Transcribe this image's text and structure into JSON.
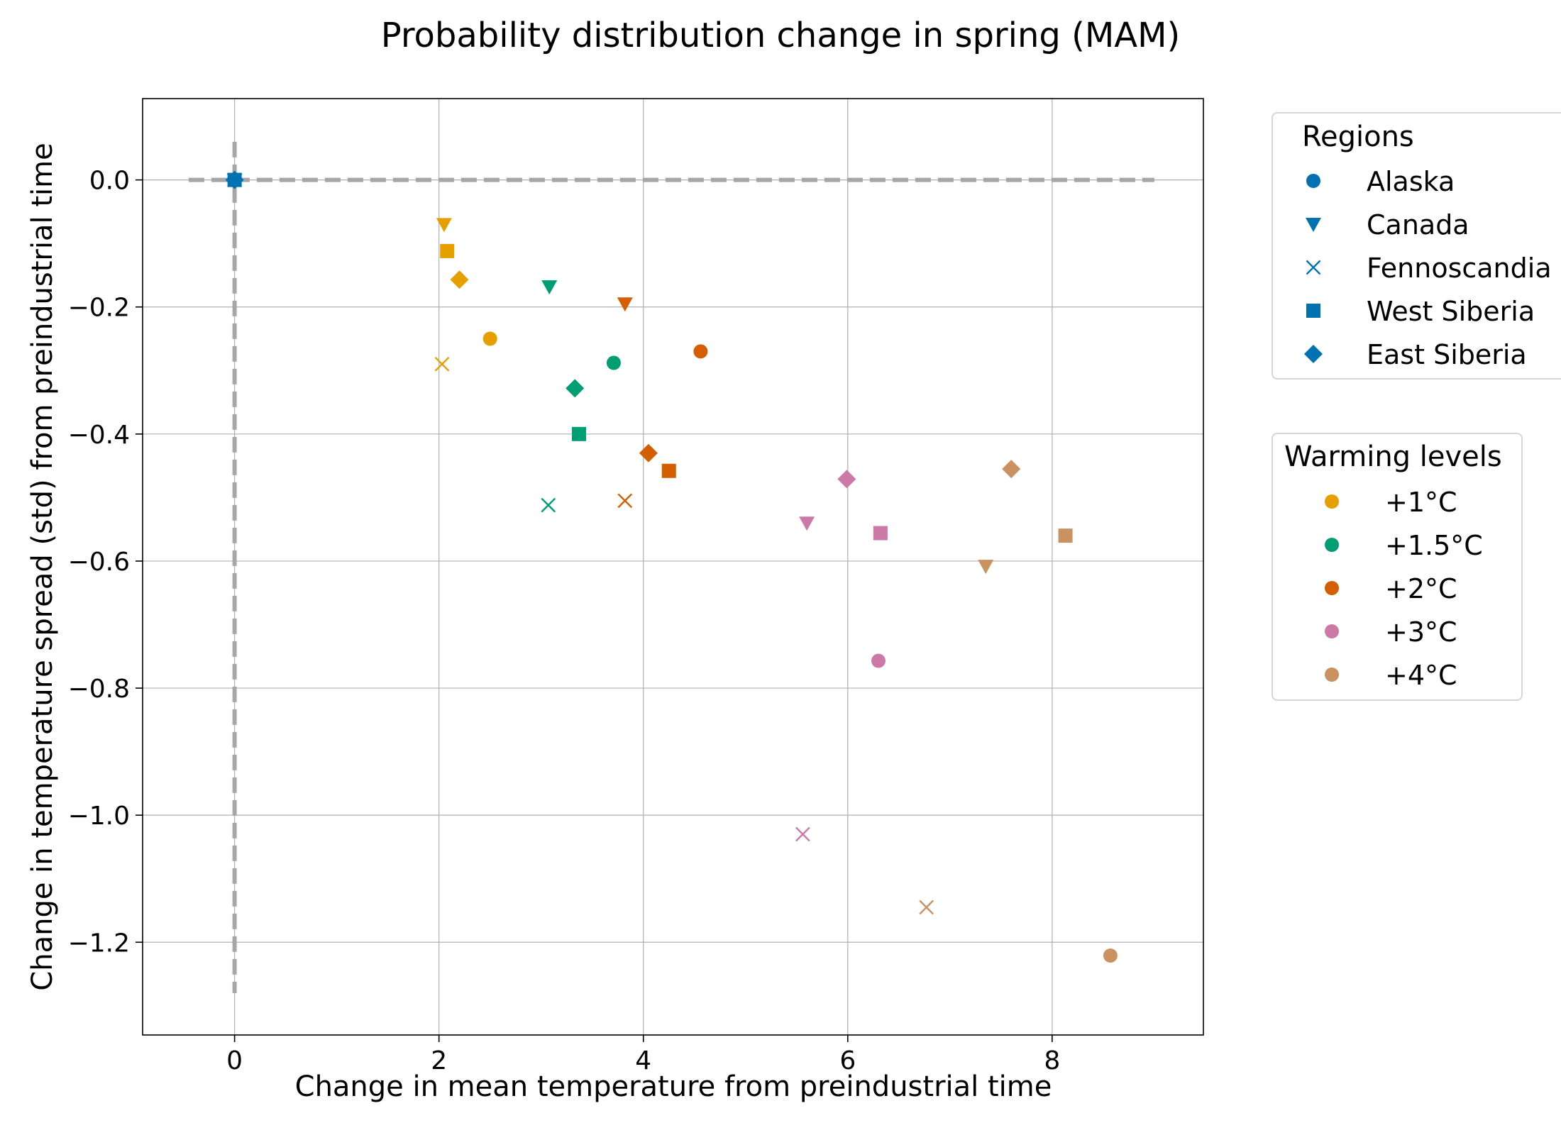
{
  "chart_data": {
    "type": "scatter",
    "title": "Probability distribution change in spring (MAM)",
    "xlabel": "Change in mean temperature from preindustrial time",
    "ylabel": "Change in temperature spread (std) from preindustrial time",
    "xlim": [
      -0.9,
      9.48
    ],
    "ylim": [
      -1.346,
      0.128
    ],
    "xticks": [
      0,
      2,
      4,
      6,
      8
    ],
    "xtick_labels": [
      "0",
      "2",
      "4",
      "6",
      "8"
    ],
    "yticks": [
      0.0,
      -0.2,
      -0.4,
      -0.6,
      -0.8,
      -1.0,
      -1.2
    ],
    "ytick_labels": [
      "0.0",
      "−0.2",
      "−0.4",
      "−0.6",
      "−0.8",
      "−1.0",
      "−1.2"
    ],
    "grid": true,
    "reference_lines": [
      {
        "orientation": "horizontal",
        "y": 0.0,
        "x_range": [
          -0.45,
          9.0
        ],
        "style": "dashed",
        "color": "#a6a6a6"
      },
      {
        "orientation": "vertical",
        "x": 0.0,
        "y_range": [
          -1.28,
          0.06
        ],
        "style": "dashed",
        "color": "#a6a6a6"
      }
    ],
    "regions": [
      {
        "name": "Alaska",
        "marker": "circle"
      },
      {
        "name": "Canada",
        "marker": "triangle-down"
      },
      {
        "name": "Fennoscandia",
        "marker": "x"
      },
      {
        "name": "West Siberia",
        "marker": "square"
      },
      {
        "name": "East Siberia",
        "marker": "diamond"
      }
    ],
    "region_legend_title": "Regions",
    "region_legend_color": "#0072b2",
    "warming_levels": [
      {
        "name": "+1°C",
        "color": "#e69f00"
      },
      {
        "name": "+1.5°C",
        "color": "#009e73"
      },
      {
        "name": "+2°C",
        "color": "#d55e00"
      },
      {
        "name": "+3°C",
        "color": "#cc79a7"
      },
      {
        "name": "+4°C",
        "color": "#ca9161"
      }
    ],
    "warming_legend_title": "Warming levels",
    "legend_placement": "outside-right",
    "origin_points": [
      {
        "region": "Alaska",
        "x": 0.0,
        "y": 0.0
      },
      {
        "region": "Canada",
        "x": 0.0,
        "y": 0.0
      },
      {
        "region": "Fennoscandia",
        "x": 0.0,
        "y": 0.0
      },
      {
        "region": "West Siberia",
        "x": 0.0,
        "y": 0.0
      },
      {
        "region": "East Siberia",
        "x": 0.0,
        "y": 0.0
      }
    ],
    "origin_color": "#0072b2",
    "points": [
      {
        "region": "Alaska",
        "level": "+1°C",
        "x": 2.5,
        "y": -0.25
      },
      {
        "region": "Canada",
        "level": "+1°C",
        "x": 2.05,
        "y": -0.07
      },
      {
        "region": "Fennoscandia",
        "level": "+1°C",
        "x": 2.03,
        "y": -0.29
      },
      {
        "region": "West Siberia",
        "level": "+1°C",
        "x": 2.08,
        "y": -0.112
      },
      {
        "region": "East Siberia",
        "level": "+1°C",
        "x": 2.2,
        "y": -0.157
      },
      {
        "region": "Alaska",
        "level": "+1.5°C",
        "x": 3.71,
        "y": -0.288
      },
      {
        "region": "Canada",
        "level": "+1.5°C",
        "x": 3.08,
        "y": -0.168
      },
      {
        "region": "Fennoscandia",
        "level": "+1.5°C",
        "x": 3.07,
        "y": -0.512
      },
      {
        "region": "West Siberia",
        "level": "+1.5°C",
        "x": 3.37,
        "y": -0.4
      },
      {
        "region": "East Siberia",
        "level": "+1.5°C",
        "x": 3.33,
        "y": -0.328
      },
      {
        "region": "Alaska",
        "level": "+2°C",
        "x": 4.56,
        "y": -0.27
      },
      {
        "region": "Canada",
        "level": "+2°C",
        "x": 3.82,
        "y": -0.195
      },
      {
        "region": "Fennoscandia",
        "level": "+2°C",
        "x": 3.82,
        "y": -0.505
      },
      {
        "region": "West Siberia",
        "level": "+2°C",
        "x": 4.25,
        "y": -0.458
      },
      {
        "region": "East Siberia",
        "level": "+2°C",
        "x": 4.05,
        "y": -0.43
      },
      {
        "region": "Alaska",
        "level": "+3°C",
        "x": 6.3,
        "y": -0.757
      },
      {
        "region": "Canada",
        "level": "+3°C",
        "x": 5.6,
        "y": -0.54
      },
      {
        "region": "Fennoscandia",
        "level": "+3°C",
        "x": 5.56,
        "y": -1.03
      },
      {
        "region": "West Siberia",
        "level": "+3°C",
        "x": 6.32,
        "y": -0.556
      },
      {
        "region": "East Siberia",
        "level": "+3°C",
        "x": 5.99,
        "y": -0.471
      },
      {
        "region": "Alaska",
        "level": "+4°C",
        "x": 8.57,
        "y": -1.221
      },
      {
        "region": "Canada",
        "level": "+4°C",
        "x": 7.35,
        "y": -0.608
      },
      {
        "region": "Fennoscandia",
        "level": "+4°C",
        "x": 6.77,
        "y": -1.145
      },
      {
        "region": "West Siberia",
        "level": "+4°C",
        "x": 8.13,
        "y": -0.56
      },
      {
        "region": "East Siberia",
        "level": "+4°C",
        "x": 7.6,
        "y": -0.455
      }
    ]
  }
}
